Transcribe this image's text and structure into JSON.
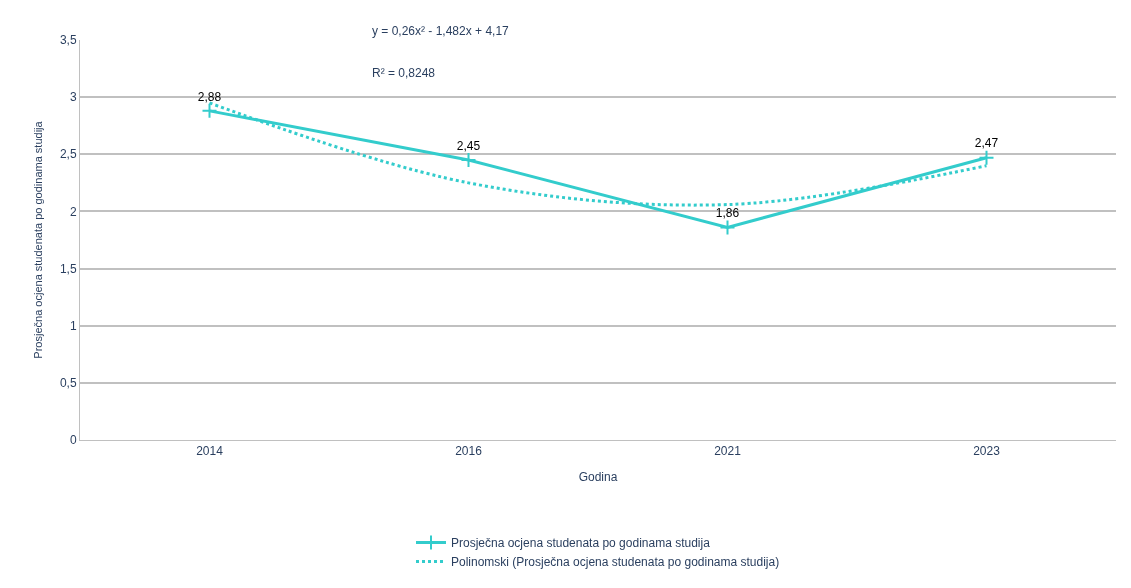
{
  "chart_data": {
    "type": "line",
    "xlabel": "Godina",
    "ylabel": "Prosječna ocjena studenata po godinama studija",
    "categories": [
      "2014",
      "2016",
      "2021",
      "2023"
    ],
    "series": [
      {
        "name": "Prosječna ocjena studenata po godinama studija",
        "color": "#33cccc",
        "values": [
          2.88,
          2.45,
          1.86,
          2.47
        ],
        "value_labels": [
          "2,88",
          "2,45",
          "1,86",
          "2,47"
        ],
        "marker": "cross",
        "line_style": "solid"
      },
      {
        "name": "Polinomski (Prosječna ocjena studenata po godinama studija)",
        "type": "line",
        "color": "#33cccc",
        "values": [
          2.95,
          2.25,
          2.06,
          2.4
        ],
        "marker": "none",
        "line_style": "dotted"
      }
    ],
    "annotations": [
      "y = 0,26x² - 1,482x + 4,17",
      "R² = 0,8248"
    ],
    "ylim": [
      0,
      3.5
    ],
    "yticks": [
      0,
      {
        "value": 0.5,
        "label": "0,5"
      },
      1,
      {
        "value": 1.5,
        "label": "1,5"
      },
      2,
      {
        "value": 2.5,
        "label": "2,5"
      },
      3,
      {
        "value": 3.5,
        "label": "3,5"
      }
    ],
    "grid": "y",
    "legend": "bottom"
  }
}
